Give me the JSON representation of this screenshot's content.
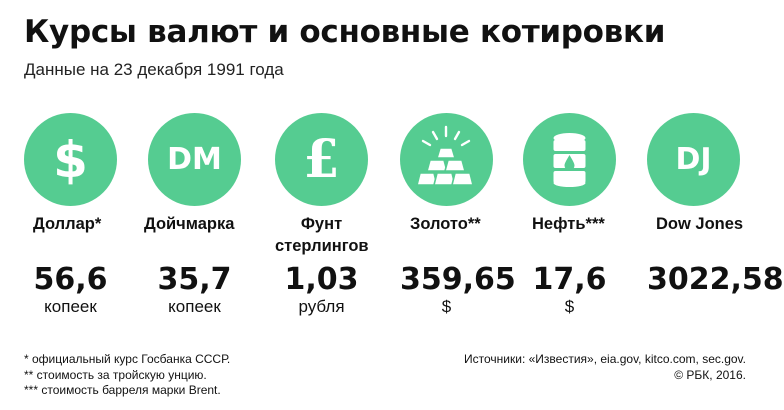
{
  "header": {
    "title": "Курсы валют и основные котировки",
    "subtitle": "Данные на 23 декабря 1991 года"
  },
  "accent_color": "#55cc91",
  "items": [
    {
      "icon": "dollar-icon",
      "symbol": "$",
      "label": "Доллар*",
      "value": "56,6",
      "unit": "копеек"
    },
    {
      "icon": "deutschmark-icon",
      "symbol": "DM",
      "label": "Дойчмарка",
      "value": "35,7",
      "unit": "копеек"
    },
    {
      "icon": "pound-icon",
      "symbol": "£",
      "label_lines": [
        "Фунт",
        "стерлингов"
      ],
      "value": "1,03",
      "unit": "рубля"
    },
    {
      "icon": "gold-bars-icon",
      "label": "Золото**",
      "value": "359,65",
      "unit": "$"
    },
    {
      "icon": "oil-barrel-icon",
      "label": "Нефть***",
      "value": "17,6",
      "unit": "$"
    },
    {
      "icon": "dow-jones-icon",
      "symbol": "DJ",
      "label": "Dow Jones",
      "value": "3022,58",
      "unit": ""
    }
  ],
  "footnotes": [
    "* официальный курс Госбанка СССР.",
    "** стоимость за тройскую унцию.",
    "*** стоимость барреля марки Brent."
  ],
  "sources": {
    "line1": "Источники: «Известия», eia.gov, kitco.com, sec.gov.",
    "line2": "© РБК, 2016."
  }
}
